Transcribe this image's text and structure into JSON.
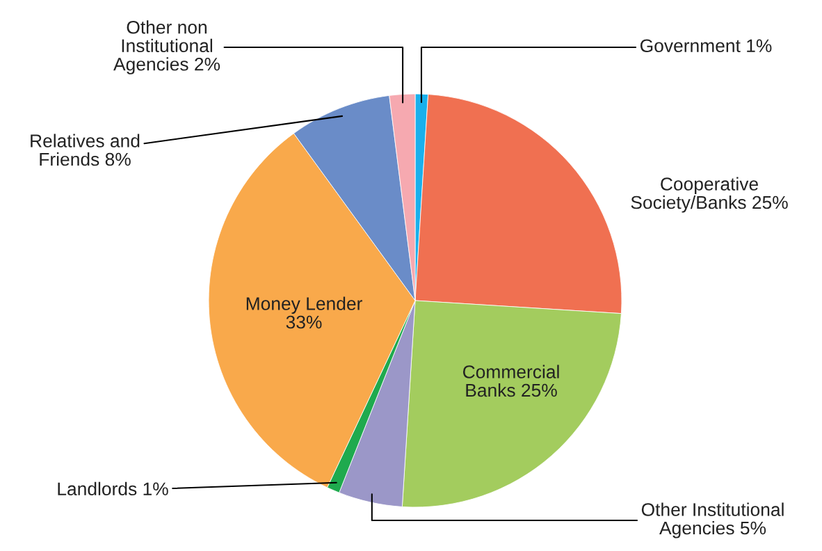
{
  "chart_data": {
    "type": "pie",
    "categories": [
      "Government",
      "Cooperative\nSociety/Banks",
      "Commercial\nBanks",
      "Other Institutional\nAgencies",
      "Landlords",
      "Money Lender",
      "Relatives and\nFriends",
      "Other non\nInstitutional\nAgencies"
    ],
    "values": [
      1,
      25,
      25,
      5,
      1,
      33,
      8,
      2
    ],
    "value_labels": [
      "1%",
      "25%",
      "25%",
      "5%",
      "1%",
      "33%",
      "8%",
      "2%"
    ],
    "colors": [
      "#1ab0ec",
      "#f07051",
      "#a3cc5e",
      "#9b97c8",
      "#1faa4e",
      "#f9a94b",
      "#6a8cc8",
      "#f6a9b0"
    ]
  }
}
